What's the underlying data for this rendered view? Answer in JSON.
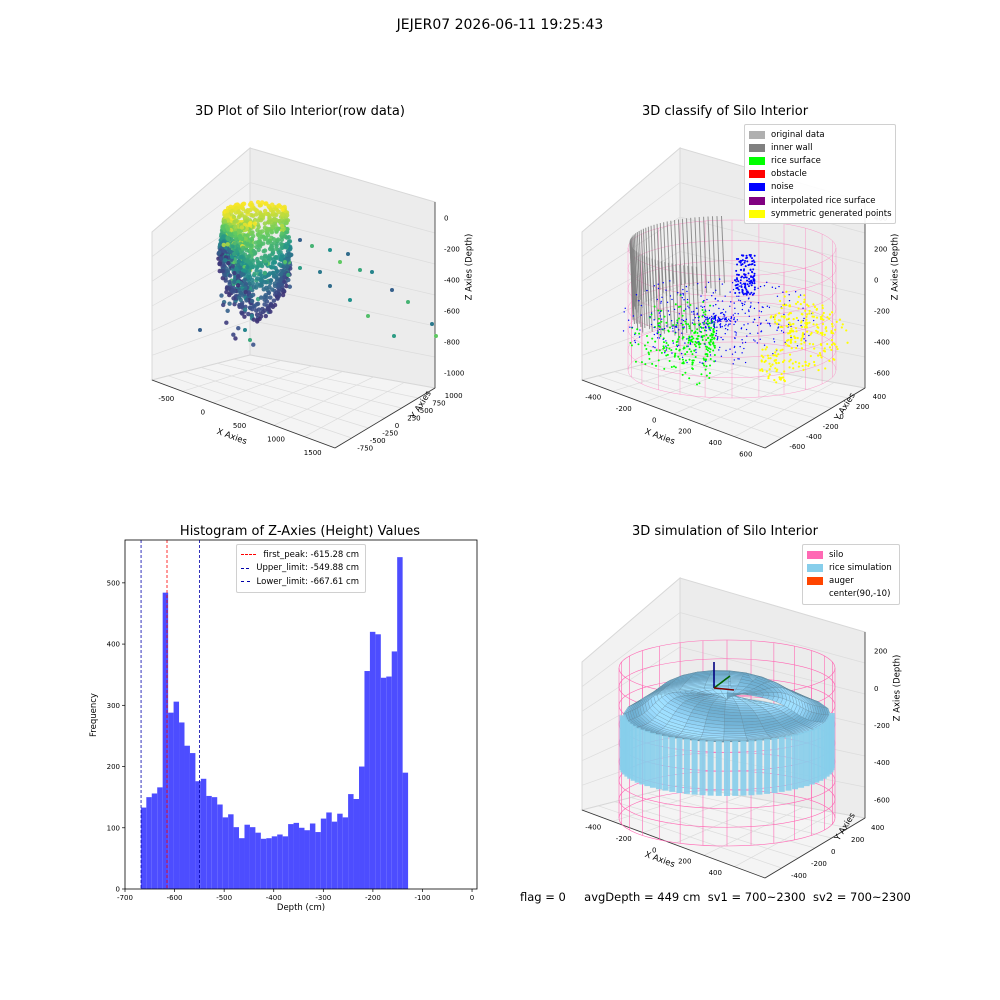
{
  "figure_title": "JEJER07 2026-06-11 19:25:43",
  "status_line": {
    "flag": "flag = 0",
    "avg_depth": "avgDepth = 449 cm",
    "sv1": "sv1 = 700~2300",
    "sv2": "sv2 = 700~2300"
  },
  "colors": {
    "histogram_bar": "#4d4dff",
    "first_peak_line": "#ff0000",
    "limit_line": "#0000aa",
    "silo_wire": "#ff69b4",
    "rice_surface": "#87ceeb",
    "original_data": "#b0b0b0",
    "inner_wall": "#808080",
    "rice_surface_class": "#00ff00",
    "obstacle": "#ff0000",
    "noise": "#0000ff",
    "interpolated": "#800080",
    "symmetric": "#ffff00",
    "auger": "#ff4500"
  },
  "chart_data": [
    {
      "type": "scatter3d",
      "title": "3D Plot of Silo Interior(row data)",
      "xlabel": "X Axies",
      "ylabel": "Y Axies",
      "zlabel": "Z Axies (Depth)",
      "x_ticks": [
        "-500",
        "0",
        "500",
        "1000",
        "1500"
      ],
      "y_ticks": [
        "1000",
        "750",
        "500",
        "250",
        "0",
        "-250",
        "-500",
        "-750"
      ],
      "z_ticks": [
        "0",
        "-200",
        "-400",
        "-600",
        "-800",
        "-1000"
      ],
      "colormap": "viridis"
    },
    {
      "type": "scatter3d",
      "title": "3D classify of Silo Interior",
      "xlabel": "X Axies",
      "ylabel": "Y Axies",
      "zlabel": "Z Axies (Depth)",
      "x_ticks": [
        "-400",
        "-200",
        "0",
        "200",
        "400",
        "600"
      ],
      "y_ticks": [
        "400",
        "200",
        "0",
        "-200",
        "-400",
        "-600"
      ],
      "z_ticks": [
        "400",
        "200",
        "0",
        "-200",
        "-400",
        "-600"
      ],
      "legend_position": "top-right",
      "legend": [
        {
          "label": "original data",
          "color": "#b0b0b0"
        },
        {
          "label": "inner wall",
          "color": "#808080"
        },
        {
          "label": "rice surface",
          "color": "#00ff00"
        },
        {
          "label": "obstacle",
          "color": "#ff0000"
        },
        {
          "label": "noise",
          "color": "#0000ff"
        },
        {
          "label": "interpolated rice surface",
          "color": "#800080"
        },
        {
          "label": "symmetric generated points",
          "color": "#ffff00"
        }
      ]
    },
    {
      "type": "bar",
      "title": "Histogram of Z-Axies (Height) Values",
      "xlabel": "Depth (cm)",
      "ylabel": "Frequency",
      "xlim": [
        -700,
        10
      ],
      "ylim": [
        0,
        570
      ],
      "x_ticks": [
        -700,
        -600,
        -500,
        -400,
        -300,
        -200,
        -100,
        0
      ],
      "y_ticks": [
        0,
        100,
        200,
        300,
        400,
        500
      ],
      "bin_start": -668,
      "bin_width": 11,
      "values": [
        133,
        150,
        156,
        166,
        484,
        288,
        306,
        272,
        234,
        222,
        176,
        180,
        152,
        150,
        138,
        117,
        122,
        101,
        83,
        105,
        101,
        92,
        82,
        83,
        86,
        89,
        86,
        106,
        108,
        100,
        96,
        107,
        93,
        115,
        125,
        110,
        123,
        117,
        155,
        147,
        200,
        356,
        420,
        416,
        345,
        347,
        388,
        542,
        190
      ],
      "vlines": [
        {
          "label": "first_peak: -615.28 cm",
          "x": -615.28,
          "color": "#ff0000"
        },
        {
          "label": "Upper_limit: -549.88 cm",
          "x": -549.88,
          "color": "#0000aa"
        },
        {
          "label": "Lower_limit: -667.61 cm",
          "x": -667.61,
          "color": "#0000aa"
        }
      ],
      "legend_position": "top-center"
    },
    {
      "type": "surface3d",
      "title": "3D simulation of Silo Interior",
      "xlabel": "X Axies",
      "ylabel": "Y Axies",
      "zlabel": "Z Axies (Depth)",
      "x_ticks": [
        "-400",
        "-200",
        "0",
        "200",
        "400",
        "600"
      ],
      "y_ticks": [
        "400",
        "200",
        "0",
        "-200",
        "-400"
      ],
      "z_ticks": [
        "200",
        "0",
        "-200",
        "-400",
        "-600"
      ],
      "legend_position": "top-right",
      "legend": [
        {
          "label": "silo",
          "color": "#ff69b4"
        },
        {
          "label": "rice simulation",
          "color": "#87ceeb"
        },
        {
          "label": "auger",
          "color": "#ff4500"
        },
        {
          "label": "center(90,-10)",
          "color": ""
        }
      ]
    }
  ]
}
